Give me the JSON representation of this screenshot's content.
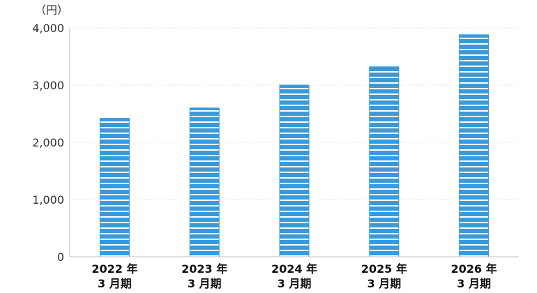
{
  "chart_data": {
    "type": "bar",
    "unit_label": "（円）",
    "categories": [
      [
        "2022 年",
        "3 月期"
      ],
      [
        "2023 年",
        "3 月期"
      ],
      [
        "2024 年",
        "3 月期"
      ],
      [
        "2025 年",
        "3 月期"
      ],
      [
        "2026 年",
        "3 月期"
      ]
    ],
    "values": [
      2420,
      2600,
      3000,
      3320,
      3880
    ],
    "ylim": [
      0,
      4000
    ],
    "yticks": [
      0,
      1000,
      2000,
      3000,
      4000
    ],
    "ytick_labels": [
      "0",
      "1,000",
      "2,000",
      "3,000",
      "4,000"
    ],
    "grid": true,
    "bar_color": "#3a9ad9",
    "stripe_color": "#ffffff"
  }
}
